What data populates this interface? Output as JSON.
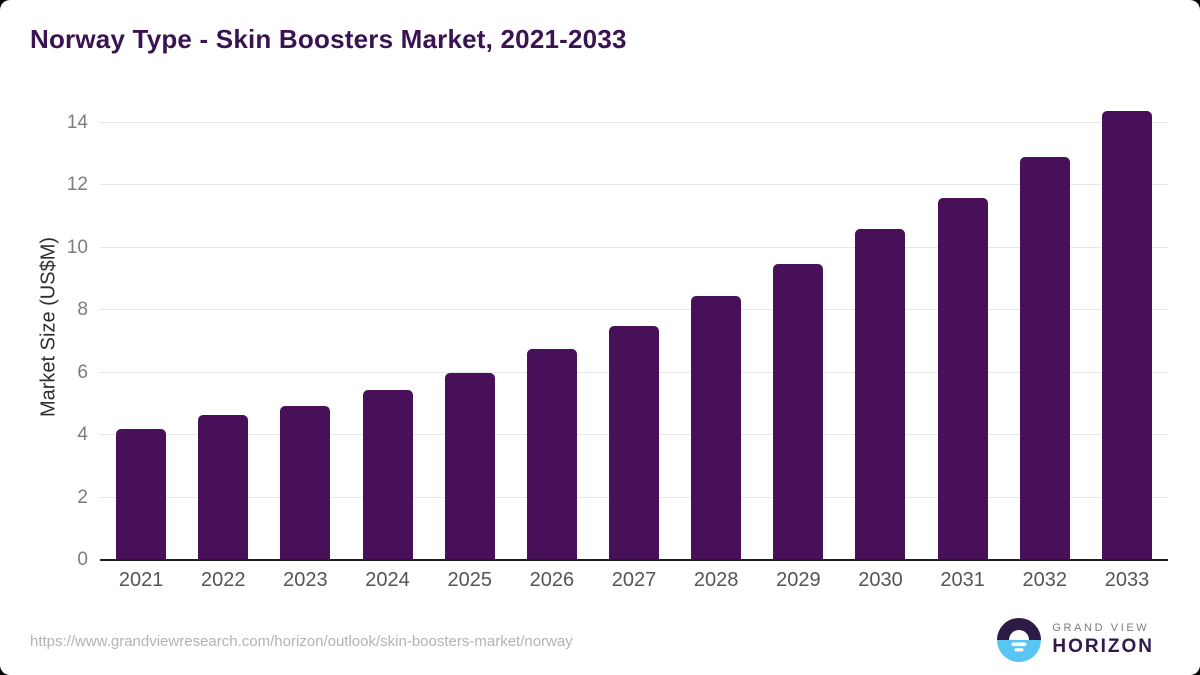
{
  "header": {
    "title": "Norway Type - Skin Boosters Market, 2021-2033"
  },
  "chart_data": {
    "type": "bar",
    "title": "Norway Type - Skin Boosters Market, 2021-2033",
    "categories": [
      "2021",
      "2022",
      "2023",
      "2024",
      "2025",
      "2026",
      "2027",
      "2028",
      "2029",
      "2030",
      "2031",
      "2032",
      "2033"
    ],
    "values": [
      4.2,
      4.65,
      4.95,
      5.45,
      6.0,
      6.75,
      7.5,
      8.45,
      9.5,
      10.6,
      11.6,
      12.9,
      14.4
    ],
    "xlabel": "",
    "ylabel": "Market Size (US$M)",
    "ylim": [
      0,
      14
    ],
    "yticks": [
      0,
      2,
      4,
      6,
      8,
      10,
      12,
      14
    ],
    "grid": "horizontal-only",
    "legend": "none",
    "bar_color": "#481058"
  },
  "footer": {
    "source_url": "https://www.grandviewresearch.com/horizon/outlook/skin-boosters-market/norway",
    "logo": {
      "brand_top": "GRAND VIEW",
      "brand_bottom": "HORIZON"
    }
  },
  "colors": {
    "bar": "#481058",
    "title": "#3A1450",
    "grid_line": "#e7e7e7",
    "axis_line": "#1f1f1f",
    "y_tick_label": "#7d7d7d",
    "x_tick_label": "#555555",
    "y_axis_title": "#2e2e2e",
    "source_url": "#b3b3b3",
    "logo_brand_top": "#7c7c7c",
    "logo_brand_bottom": "#31194a",
    "logo_blue": "#58C5F2",
    "logo_dark": "#2D1B45"
  }
}
